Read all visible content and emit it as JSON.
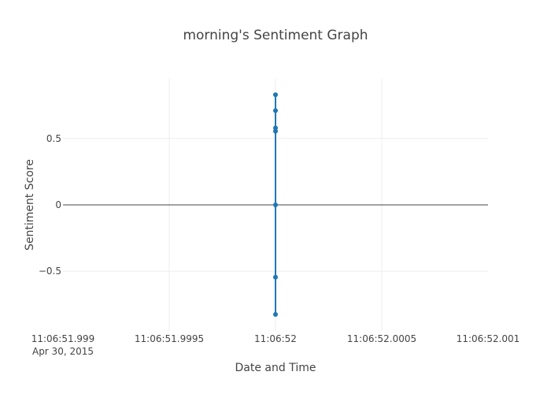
{
  "chart_data": {
    "type": "line",
    "title": "morning's Sentiment Graph",
    "xlabel": "Date and Time",
    "ylabel": "Sentiment Score",
    "x_tick_labels": [
      "11:06:51.999",
      "11:06:51.9995",
      "11:06:52",
      "11:06:52.0005",
      "11:06:52.001"
    ],
    "x_tick_sublabel": "Apr 30, 2015",
    "x_ticks_ms": [
      -1,
      -0.5,
      0,
      0.5,
      1
    ],
    "xlim_ms": [
      -1,
      1
    ],
    "y_tick_labels": [
      "0.5",
      "0",
      "−0.5"
    ],
    "y_ticks": [
      0.5,
      0,
      -0.5
    ],
    "ylim": [
      -0.95,
      0.95
    ],
    "grid": true,
    "series": [
      {
        "color": "#1f77b4",
        "x": [
          "2015-04-30 11:06:52",
          "2015-04-30 11:06:52",
          "2015-04-30 11:06:52",
          "2015-04-30 11:06:52",
          "2015-04-30 11:06:52",
          "2015-04-30 11:06:52",
          "2015-04-30 11:06:52"
        ],
        "x_ms": [
          0,
          0,
          0,
          0,
          0,
          0,
          0
        ],
        "values": [
          0.83,
          0.71,
          0.58,
          0.555,
          0.0,
          -0.545,
          -0.825
        ]
      }
    ]
  }
}
